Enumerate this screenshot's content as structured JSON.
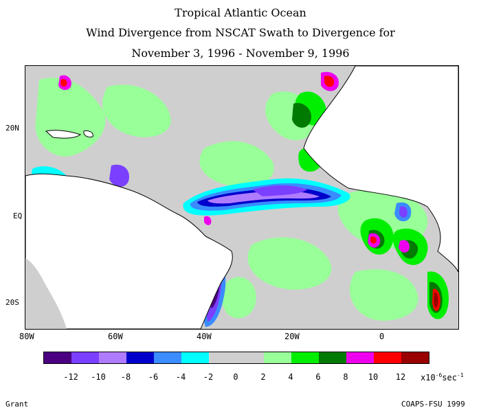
{
  "title": {
    "line1": "Tropical Atlantic Ocean",
    "line2": "Wind Divergence from NSCAT Swath to Divergence for",
    "line3": "November 3, 1996 - November 9, 1996"
  },
  "axes": {
    "lat_labels": [
      "20N",
      "EQ",
      "20S"
    ],
    "lon_labels": [
      "80W",
      "60W",
      "40W",
      "20W",
      "0"
    ]
  },
  "legend": {
    "colors": [
      "#4b0082",
      "#7b3fff",
      "#b07cff",
      "#0000cc",
      "#3a8cff",
      "#00ffff",
      "#cfcfcf",
      "#cfcfcf",
      "#99ff99",
      "#00ee00",
      "#007a00",
      "#ee00ee",
      "#ff0000",
      "#990000"
    ],
    "ticks": [
      "-12",
      "-10",
      "-8",
      "-6",
      "-4",
      "-2",
      "0",
      "2",
      "4",
      "6",
      "8",
      "10",
      "12"
    ],
    "unit_text": "x10",
    "unit_exp": "-6",
    "unit_after": "sec",
    "unit_exp2": "-1"
  },
  "footer": {
    "left": "Grant",
    "right": "COAPS-FSU 1999"
  }
}
